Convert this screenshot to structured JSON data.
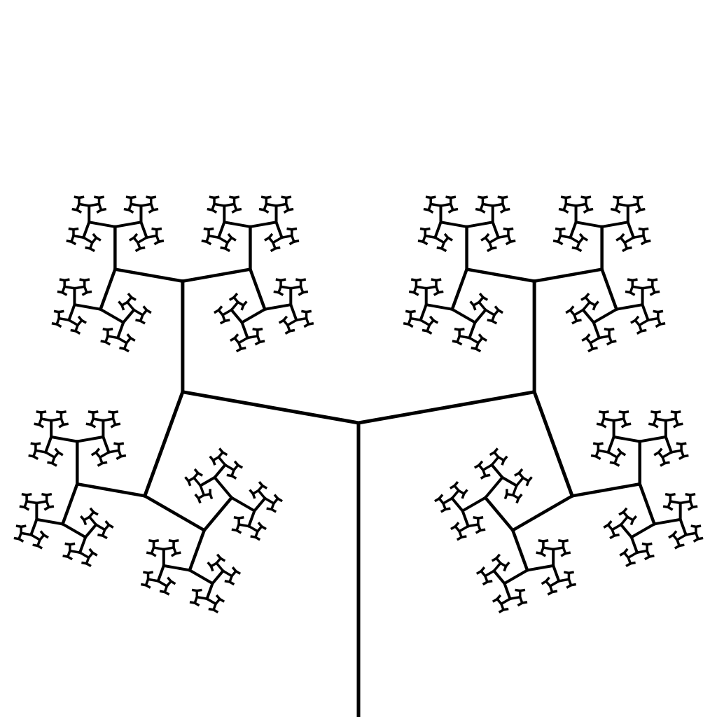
{
  "figure": {
    "kind": "fractal-tree",
    "background_color": "#ffffff",
    "line_color": "#000000",
    "depth": 9,
    "branch_angle_deg": 80,
    "length_ratio": 0.5
  }
}
